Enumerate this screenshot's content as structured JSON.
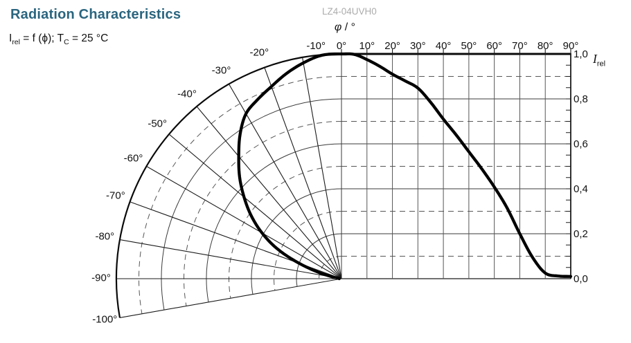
{
  "header": {
    "title": "Radiation Characteristics",
    "part_number": "LZ4-04UVH0",
    "formula": {
      "lhs": "I",
      "lhs_sub": "rel",
      "mid": " = f (ϕ); T",
      "cond_sub": "C",
      "rhs": " = 25 °C"
    }
  },
  "axes": {
    "x_symbol": "φ",
    "x_unit": " / °",
    "y_symbol": "I",
    "y_sub": "rel"
  },
  "colors": {
    "background": "#FFFFFF",
    "title": "#2A657F",
    "part_number": "#ACACAC",
    "ink": "#111111",
    "curve": "#000000",
    "grid_solid": "#3A3A3A",
    "grid_light": "#555555",
    "frame": "#0A0A0A"
  },
  "chart_data": {
    "type": "line",
    "title": "Radiation Characteristics",
    "subtitle": "I_rel = f (ϕ); T_C = 25 °C",
    "x_label": "φ / °",
    "y_label": "I_rel",
    "xlim": [
      0,
      90
    ],
    "ylim": [
      0.0,
      1.0
    ],
    "grid": true,
    "legend_position": "none",
    "x": [
      0,
      5,
      10,
      15,
      20,
      25,
      30,
      35,
      40,
      45,
      50,
      55,
      60,
      65,
      70,
      75,
      80,
      85,
      90
    ],
    "series": [
      {
        "name": "I_rel = f(φ) at T_C = 25 °C",
        "values": [
          1.0,
          0.998,
          0.975,
          0.945,
          0.91,
          0.88,
          0.848,
          0.785,
          0.71,
          0.64,
          0.565,
          0.49,
          0.408,
          0.315,
          0.2,
          0.095,
          0.025,
          0.012,
          0.01
        ]
      }
    ],
    "x_ticks_deg": [
      -10,
      0,
      10,
      20,
      30,
      40,
      50,
      60,
      70,
      80,
      90
    ],
    "x_tick_labels": [
      "-10°",
      "0°",
      "10°",
      "20°",
      "30°",
      "40°",
      "50°",
      "60°",
      "70°",
      "80°",
      "90°"
    ],
    "y_tick_levels": [
      1.0,
      0.8,
      0.6,
      0.4,
      0.2,
      0.0
    ],
    "y_tick_labels": [
      "1,0",
      "0,8",
      "0,6",
      "0,4",
      "0,2",
      "0,0"
    ],
    "y_minor_tick_step": 0.05,
    "y_solid_levels": [
      0.0,
      0.2,
      0.4,
      0.6,
      0.8,
      1.0
    ],
    "y_dashed_levels": [
      0.1,
      0.3,
      0.5,
      0.7,
      0.9
    ],
    "polar": {
      "fan_deg": [
        0,
        100
      ],
      "radial_step_deg": 10,
      "label_angles_deg": [
        20,
        30,
        40,
        50,
        60,
        70,
        80,
        90,
        100
      ],
      "angle_labels": [
        "-20°",
        "-30°",
        "-40°",
        "-50°",
        "-60°",
        "-70°",
        "-80°",
        "-90°",
        "-100°"
      ],
      "arc_solid_r": [
        0.2,
        0.4,
        0.6,
        0.8,
        1.0
      ],
      "arc_dashed_r": [
        0.1,
        0.3,
        0.5,
        0.7,
        0.9
      ]
    }
  }
}
